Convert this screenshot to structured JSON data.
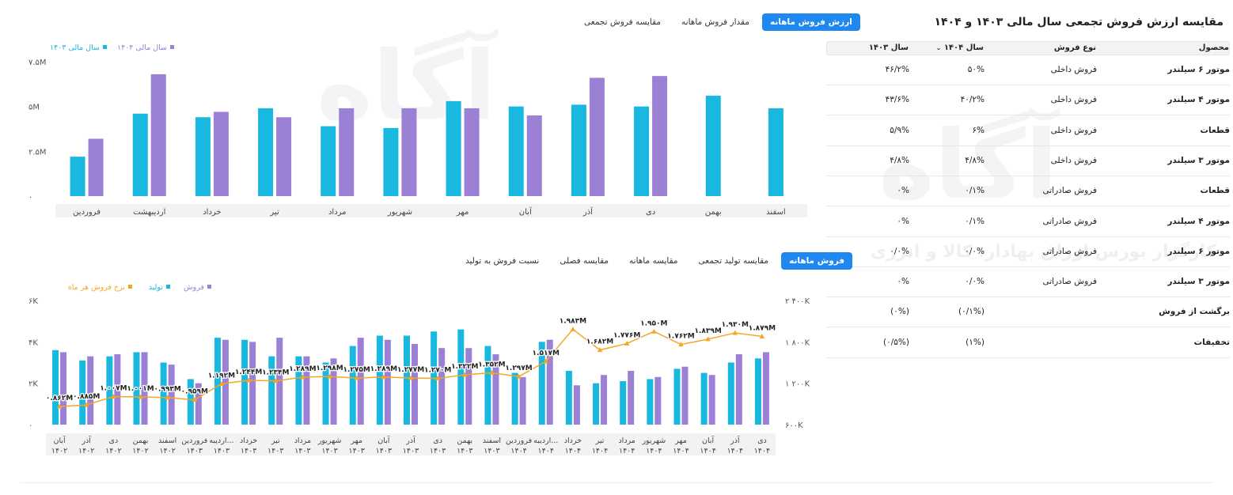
{
  "table_panel": {
    "title": "مقایسه ارزش فروش تجمعی سال مالی ۱۴۰۳ و ۱۴۰۴",
    "excel_icon": "excel-icon",
    "headers": {
      "product": "محصول",
      "type": "نوع فروش",
      "y1404": "سال ۱۴۰۴",
      "y1403": "سال ۱۴۰۳"
    },
    "rows": [
      {
        "product": "موتور ۶ سیلندر",
        "type": "فروش داخلی",
        "y1404": "۵۰%",
        "y1403": "۴۶/۲%"
      },
      {
        "product": "موتور ۴ سیلندر",
        "type": "فروش داخلی",
        "y1404": "۴۰/۲%",
        "y1403": "۴۳/۶%"
      },
      {
        "product": "قطعات",
        "type": "فروش داخلی",
        "y1404": "۶%",
        "y1403": "۵/۹%"
      },
      {
        "product": "موتور ۳ سیلندر",
        "type": "فروش داخلی",
        "y1404": "۴/۸%",
        "y1403": "۴/۸%"
      },
      {
        "product": "قطعات",
        "type": "فروش صادراتی",
        "y1404": "۰/۱%",
        "y1403": "۰%"
      },
      {
        "product": "موتور ۴ سیلندر",
        "type": "فروش صادراتی",
        "y1404": "۰/۱%",
        "y1403": "۰%"
      },
      {
        "product": "موتور ۶ سیلندر",
        "type": "فروش صادراتی",
        "y1404": "۰/۰%",
        "y1403": "۰/۰%"
      },
      {
        "product": "موتور ۳ سیلندر",
        "type": "فروش صادراتی",
        "y1404": "۰/۰%",
        "y1403": "۰%"
      },
      {
        "product": "برگشت از فروش",
        "type": "",
        "y1404": "(۰/۱%)",
        "y1403": "(۰%)"
      },
      {
        "product": "تخفیفات",
        "type": "",
        "y1404": "(۱%)",
        "y1403": "(۰/۵%)"
      }
    ]
  },
  "top_tabs": [
    "ارزش فروش ماهانه",
    "مقدار فروش ماهانه",
    "مقایسه فروش تجمعی"
  ],
  "bottom_tabs": [
    "فروش ماهانه",
    "مقایسه تولید تجمعی",
    "مقایسه ماهانه",
    "مقایسه فصلی",
    "نسبت فروش به تولید"
  ],
  "watermark_text": "آگاه",
  "watermark_sub": "کارگزار بورس اوراق بهادار، کالا و انرژی",
  "colors": {
    "y1403": "#19b8e0",
    "y1404": "#9b80d6",
    "price": "#f5a623",
    "band": "#f2f2f5",
    "accent": "#1e88f0"
  },
  "chart_data": [
    {
      "type": "bar",
      "categories": [
        "اسفند",
        "بهمن",
        "دی",
        "آذر",
        "آبان",
        "مهر",
        "شهریور",
        "مرداد",
        "تیر",
        "خرداد",
        "اردیبهشت",
        "فروردین"
      ],
      "series": [
        {
          "name": "سال مالی ۱۴۰۳",
          "values": [
            4.9,
            5.6,
            5.0,
            5.1,
            5.0,
            5.3,
            3.8,
            3.9,
            4.9,
            4.4,
            4.6,
            2.2
          ]
        },
        {
          "name": "سال مالی ۱۴۰۴",
          "values": [
            null,
            null,
            6.7,
            6.6,
            4.5,
            4.9,
            4.9,
            4.9,
            4.4,
            4.7,
            6.8,
            3.2
          ]
        }
      ],
      "yticks": [
        "۰",
        "۲.۵M",
        "۵M",
        "۷.۵M"
      ],
      "ylim": [
        0,
        7.5
      ],
      "legend": "top-left"
    },
    {
      "type": "bar",
      "categories": [
        "آبان ۱۴۰۲",
        "آذر ۱۴۰۲",
        "دی ۱۴۰۲",
        "بهمن ۱۴۰۲",
        "اسفند ۱۴۰۲",
        "فروردین ۱۴۰۳",
        "اردیبه... ۱۴۰۳",
        "خرداد ۱۴۰۳",
        "تیر ۱۴۰۳",
        "مرداد ۱۴۰۳",
        "شهریور ۱۴۰۳",
        "مهر ۱۴۰۳",
        "آبان ۱۴۰۳",
        "آذر ۱۴۰۳",
        "دی ۱۴۰۳",
        "بهمن ۱۴۰۳",
        "اسفند ۱۴۰۳",
        "فروردین ۱۴۰۴",
        "اردیبه... ۱۴۰۴",
        "خرداد ۱۴۰۴",
        "تیر ۱۴۰۴",
        "مرداد ۱۴۰۴",
        "شهریور ۱۴۰۴",
        "مهر ۱۴۰۴",
        "آبان ۱۴۰۴",
        "آذر ۱۴۰۴",
        "دی ۱۴۰۴"
      ],
      "series": [
        {
          "name": "فروش",
          "values": [
            3.5,
            3.3,
            3.4,
            3.5,
            2.9,
            2.0,
            4.1,
            4.0,
            4.2,
            3.3,
            3.2,
            4.2,
            4.1,
            3.9,
            3.7,
            3.7,
            3.4,
            2.3,
            4.1,
            1.9,
            2.4,
            2.6,
            2.3,
            2.8,
            2.4,
            3.4,
            3.5
          ]
        },
        {
          "name": "تولید",
          "values": [
            3.6,
            3.1,
            3.3,
            3.5,
            3.0,
            2.2,
            4.2,
            4.1,
            3.3,
            3.3,
            3.0,
            3.8,
            4.3,
            4.3,
            4.5,
            4.6,
            3.8,
            2.5,
            4.0,
            2.6,
            2.0,
            2.1,
            2.2,
            2.7,
            2.5,
            3.0,
            3.2
          ]
        },
        {
          "name": "نرخ فروش هر ماه",
          "values": [
            0.862,
            0.885,
            1.007,
            1.001,
            0.993,
            0.959,
            1.192,
            1.244,
            1.234,
            1.289,
            1.298,
            1.275,
            1.289,
            1.277,
            1.27,
            1.322,
            1.352,
            1.297,
            1.517,
            1.983,
            1.682,
            1.776,
            1.95,
            1.762,
            1.839,
            1.93,
            1.879
          ],
          "labels": [
            "۰.۸۶۲M",
            "۰.۸۸۵M",
            "۱.۰۰۷M",
            "۱.۰۰۱M",
            "۰.۹۹۳M",
            "۰.۹۵۹M",
            "۱.۱۹۲M",
            "۱.۲۴۴M",
            "۱.۲۳۴M",
            "۱.۲۸۹M",
            "۱.۲۹۸M",
            "۱.۲۷۵M",
            "۱.۲۸۹M",
            "۱.۲۷۷M",
            "۱.۲۷۰M",
            "۱.۳۲۲M",
            "۱.۳۵۲M",
            "۱.۲۹۷M",
            "۱.۵۱۷M",
            "۱.۹۸۳M",
            "۱.۶۸۲M",
            "۱.۷۷۶M",
            "۱.۹۵۰M",
            "۱.۷۶۲M",
            "۱.۸۳۹M",
            "۱.۹۳۰M",
            "۱.۸۷۹M"
          ]
        }
      ],
      "yticks_left": [
        "۰",
        "۲K",
        "۴K",
        "۶K"
      ],
      "ylim_left": [
        0,
        6
      ],
      "yticks_right": [
        "۶۰۰K",
        "۱ ۲۰۰K",
        "۱ ۸۰۰K",
        "۲ ۴۰۰K"
      ],
      "ylim_right": [
        0.6,
        2.4
      ],
      "legend": "top-left"
    }
  ]
}
